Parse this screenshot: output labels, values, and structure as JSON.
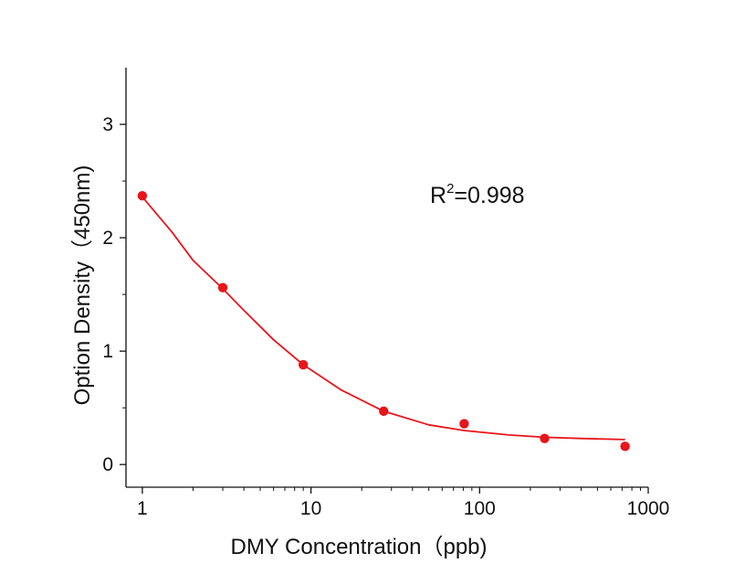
{
  "chart_data": {
    "type": "scatter",
    "title": "",
    "xlabel": "DMY Concentration（ppb)",
    "ylabel": "Option Density（450nm)",
    "x_scale": "log",
    "xlim": [
      0.8,
      1000
    ],
    "ylim": [
      -0.2,
      3.5
    ],
    "x_ticks": [
      1,
      10,
      100,
      1000
    ],
    "x_tick_labels": [
      "1",
      "10",
      "100",
      "1000"
    ],
    "y_ticks": [
      0,
      1,
      2,
      3
    ],
    "y_tick_labels": [
      "0",
      "1",
      "2",
      "3"
    ],
    "grid": false,
    "series": [
      {
        "kind": "points",
        "x": [
          1,
          3,
          9,
          27,
          81,
          243,
          729
        ],
        "y": [
          2.37,
          1.56,
          0.88,
          0.47,
          0.36,
          0.23,
          0.16
        ],
        "color": "#e8151b"
      },
      {
        "kind": "fit-line",
        "x": [
          1,
          1.5,
          2,
          3,
          4,
          6,
          9,
          15,
          27,
          50,
          81,
          150,
          243,
          400,
          729
        ],
        "y": [
          2.36,
          2.05,
          1.8,
          1.55,
          1.36,
          1.1,
          0.88,
          0.66,
          0.47,
          0.35,
          0.3,
          0.26,
          0.24,
          0.23,
          0.22
        ],
        "color": "#e8151b"
      }
    ],
    "annotations": {
      "r_squared_prefix": "R",
      "r_squared_sup": "2",
      "r_squared_value": "=0.998"
    }
  }
}
